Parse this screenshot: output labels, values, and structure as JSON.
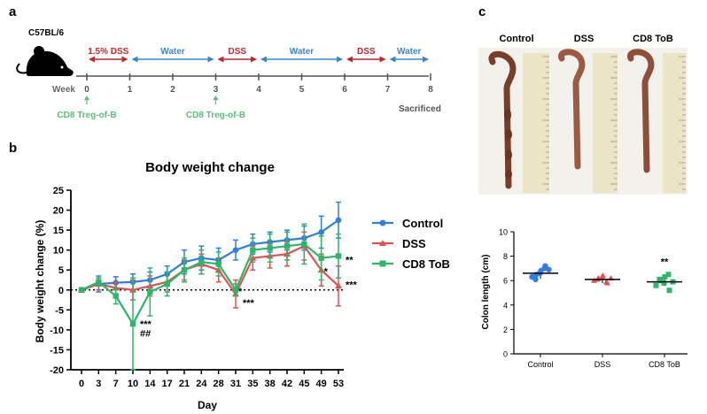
{
  "panels": {
    "a": "a",
    "b": "b",
    "c": "c"
  },
  "timeline": {
    "strain": "C57BL/6",
    "week_label": "Week",
    "weeks": [
      "0",
      "1",
      "2",
      "3",
      "4",
      "5",
      "6",
      "7",
      "8"
    ],
    "phases": [
      {
        "label": "1.5% DSS",
        "from": 0,
        "to": 1,
        "kind": "dss"
      },
      {
        "label": "Water",
        "from": 1,
        "to": 3,
        "kind": "water"
      },
      {
        "label": "DSS",
        "from": 3,
        "to": 4,
        "kind": "dss"
      },
      {
        "label": "Water",
        "from": 4,
        "to": 6,
        "kind": "water"
      },
      {
        "label": "DSS",
        "from": 6,
        "to": 7,
        "kind": "dss"
      },
      {
        "label": "Water",
        "from": 7,
        "to": 8,
        "kind": "water"
      }
    ],
    "treatments": [
      {
        "label": "CD8 Treg-of-B",
        "week": 0
      },
      {
        "label": "CD8 Treg-of-B",
        "week": 3
      }
    ],
    "end_label": "Sacrificed"
  },
  "colors": {
    "control": "#2f7fe0",
    "dss": "#e05252",
    "cd8": "#2fb56a",
    "water": "#3a86c8",
    "dss_phase": "#c0282b",
    "treat": "#5bbf7a",
    "axis": "#000000"
  },
  "photo": {
    "labels": [
      "Control",
      "DSS",
      "CD8 ToB"
    ]
  },
  "chart_data": [
    {
      "type": "line",
      "title": "Body weight change",
      "xlabel": "Day",
      "ylabel": "Body weight change (%)",
      "x": [
        0,
        3,
        7,
        10,
        14,
        17,
        21,
        24,
        28,
        31,
        35,
        38,
        42,
        45,
        49,
        53
      ],
      "ylim": [
        -20,
        25
      ],
      "yticks": [
        -20,
        -15,
        -10,
        -5,
        0,
        5,
        10,
        15,
        20,
        25
      ],
      "series": [
        {
          "name": "Control",
          "key": "control",
          "marker": "circle",
          "values": [
            0,
            1.5,
            1.8,
            2,
            2.5,
            4,
            7,
            8,
            7.5,
            10,
            11.5,
            12,
            12.5,
            13,
            14.5,
            17.5
          ],
          "err": [
            0.5,
            2,
            1.5,
            2,
            2,
            2,
            3,
            3,
            3,
            2.5,
            2.5,
            2.5,
            2.5,
            3,
            4,
            4.5
          ]
        },
        {
          "name": "DSS",
          "key": "dss",
          "marker": "triangle",
          "values": [
            0,
            1.5,
            0.5,
            0,
            1,
            2,
            5,
            6.5,
            5,
            -1,
            8,
            8.5,
            9,
            11,
            5,
            1
          ],
          "err": [
            0.5,
            1.5,
            1.5,
            2.5,
            2.5,
            2.5,
            2.5,
            2.5,
            3,
            3.5,
            3,
            3,
            3,
            3.5,
            4,
            5
          ]
        },
        {
          "name": "CD8 ToB",
          "key": "cd8",
          "marker": "square",
          "values": [
            0,
            2,
            -1.5,
            -8.5,
            -0.5,
            1.5,
            5,
            7,
            6.5,
            0,
            10,
            10.5,
            11,
            11.5,
            8,
            8.5
          ],
          "err": [
            0.5,
            1,
            2,
            11.5,
            6,
            3,
            3,
            3,
            3,
            1.5,
            3,
            3.5,
            3.5,
            5,
            5.5,
            5.5
          ]
        }
      ],
      "annotations": [
        {
          "text": "***",
          "x": 10,
          "y": -8.5
        },
        {
          "text": "##",
          "x": 10,
          "y": -10.8
        },
        {
          "text": "*",
          "x": 31,
          "y": -1.2
        },
        {
          "text": "***",
          "x": 31,
          "y": -1.8
        },
        {
          "text": "*",
          "x": 49,
          "y": 3.8
        },
        {
          "text": "**",
          "x": 53,
          "y": 8.5
        },
        {
          "text": "***",
          "x": 53,
          "y": 2.5
        }
      ],
      "legend": "right"
    },
    {
      "type": "scatter",
      "ylabel": "Colon length (cm)",
      "categories": [
        "Control",
        "DSS",
        "CD8 ToB"
      ],
      "ylim": [
        0,
        10
      ],
      "yticks": [
        0,
        2,
        4,
        6,
        8,
        10
      ],
      "means": [
        6.6,
        6.1,
        5.9
      ],
      "sd": [
        0.45,
        0.3,
        0.35
      ],
      "points": [
        [
          6.3,
          6.5,
          6.8,
          7.2,
          6.1,
          6.6,
          7.0,
          6.9
        ],
        [
          6.0,
          6.2,
          6.4,
          5.8,
          6.1,
          6.3,
          5.9,
          6.2
        ],
        [
          5.6,
          6.0,
          6.3,
          5.2,
          6.1,
          5.8,
          6.5,
          5.9
        ]
      ],
      "point_keys": [
        "control",
        "dss",
        "cd8"
      ],
      "annotations": [
        {
          "text": "**",
          "category": 2,
          "y": 7.0
        }
      ]
    }
  ]
}
